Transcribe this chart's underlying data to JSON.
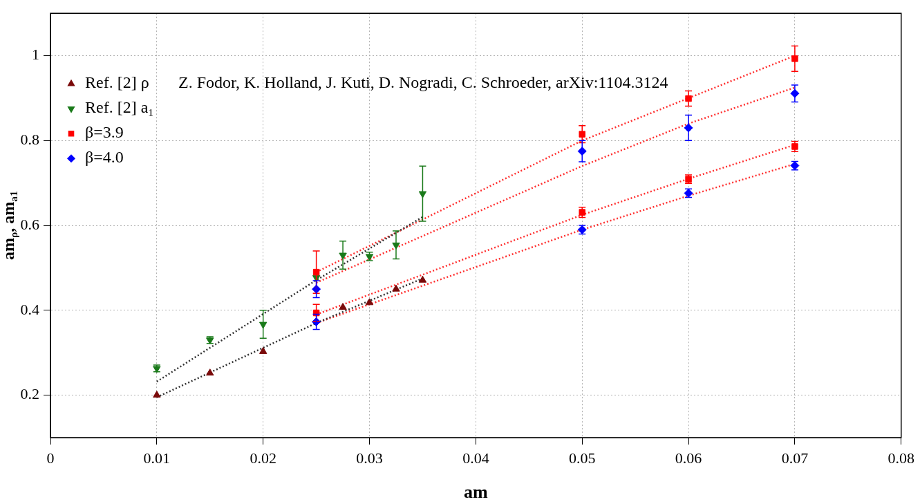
{
  "chart_data": {
    "type": "scatter",
    "xlabel": "am",
    "ylabel": "am$_{ρ}$, am$_{a1}$",
    "annotations": [
      "Z. Fodor, K. Holland, J. Kuti, D. Nogradi, C. Schroeder, arXiv:1104.3124"
    ],
    "xlim": [
      0,
      0.08
    ],
    "ylim": [
      0.1,
      1.1
    ],
    "xticks": [
      0,
      0.01,
      0.02,
      0.03,
      0.04,
      0.05,
      0.06,
      0.07,
      0.08
    ],
    "yticks": [
      0.2,
      0.4,
      0.6,
      0.8,
      1
    ],
    "grid": true,
    "legend": "top left",
    "series": [
      {
        "name": "Ref. [2] ρ",
        "marker": "triangle",
        "color": "#7a0a0a",
        "x": [
          0.01,
          0.015,
          0.02,
          0.025,
          0.0275,
          0.03,
          0.0325,
          0.035
        ],
        "values": [
          0.2,
          0.252,
          0.303,
          null,
          0.407,
          0.418,
          0.45,
          0.471
        ]
      },
      {
        "name": "Ref. [2] a$_{1}$",
        "marker": "triangle-down",
        "color": "#1a7a1a",
        "x": [
          0.01,
          0.015,
          0.02,
          0.025,
          0.0275,
          0.03,
          0.0325,
          0.035
        ],
        "values": [
          0.263,
          0.33,
          0.367,
          0.477,
          0.53,
          0.527,
          0.554,
          0.675
        ],
        "errors": [
          0.008,
          0.008,
          0.033,
          null,
          0.033,
          0.01,
          0.033,
          0.065
        ]
      },
      {
        "name": "β=3.9",
        "marker": "square",
        "color": "#ff0000",
        "x": [
          0.025,
          0.025,
          0.05,
          0.05,
          0.06,
          0.06,
          0.07,
          0.07
        ],
        "values": [
          0.49,
          0.394,
          0.815,
          0.631,
          0.899,
          0.709,
          0.993,
          0.786
        ],
        "errors": [
          0.05,
          0.02,
          0.02,
          0.012,
          0.018,
          0.01,
          0.03,
          0.012
        ]
      },
      {
        "name": "β=4.0",
        "marker": "diamond",
        "color": "#0000ff",
        "x": [
          0.025,
          0.025,
          0.05,
          0.05,
          0.06,
          0.06,
          0.07,
          0.07
        ],
        "values": [
          0.45,
          0.373,
          0.775,
          0.59,
          0.83,
          0.676,
          0.911,
          0.741
        ],
        "errors": [
          0.02,
          0.018,
          0.025,
          0.01,
          0.03,
          0.01,
          0.02,
          0.01
        ]
      },
      {
        "type": "line",
        "color": "#333333",
        "line_style": "dotted",
        "x": [
          0.01,
          0.025,
          0.035
        ],
        "values": [
          0.195,
          0.37,
          0.475
        ]
      },
      {
        "type": "line",
        "color": "#333333",
        "line_style": "dotted",
        "x": [
          0.01,
          0.025,
          0.035
        ],
        "values": [
          0.232,
          0.471,
          0.62
        ]
      },
      {
        "type": "line",
        "color": "#ff3030",
        "line_style": "dotted",
        "x": [
          0.025,
          0.05,
          0.06,
          0.07
        ],
        "values": [
          0.49,
          0.8,
          0.9,
          1.0
        ]
      },
      {
        "type": "line",
        "color": "#ff3030",
        "line_style": "dotted",
        "x": [
          0.025,
          0.05,
          0.06,
          0.07
        ],
        "values": [
          0.465,
          0.74,
          0.84,
          0.925
        ]
      },
      {
        "type": "line",
        "color": "#ff3030",
        "line_style": "dotted",
        "x": [
          0.025,
          0.05,
          0.06,
          0.07
        ],
        "values": [
          0.39,
          0.625,
          0.71,
          0.79
        ]
      },
      {
        "type": "line",
        "color": "#ff3030",
        "line_style": "dotted",
        "x": [
          0.025,
          0.05,
          0.06,
          0.07
        ],
        "values": [
          0.37,
          0.59,
          0.67,
          0.745
        ]
      }
    ]
  }
}
